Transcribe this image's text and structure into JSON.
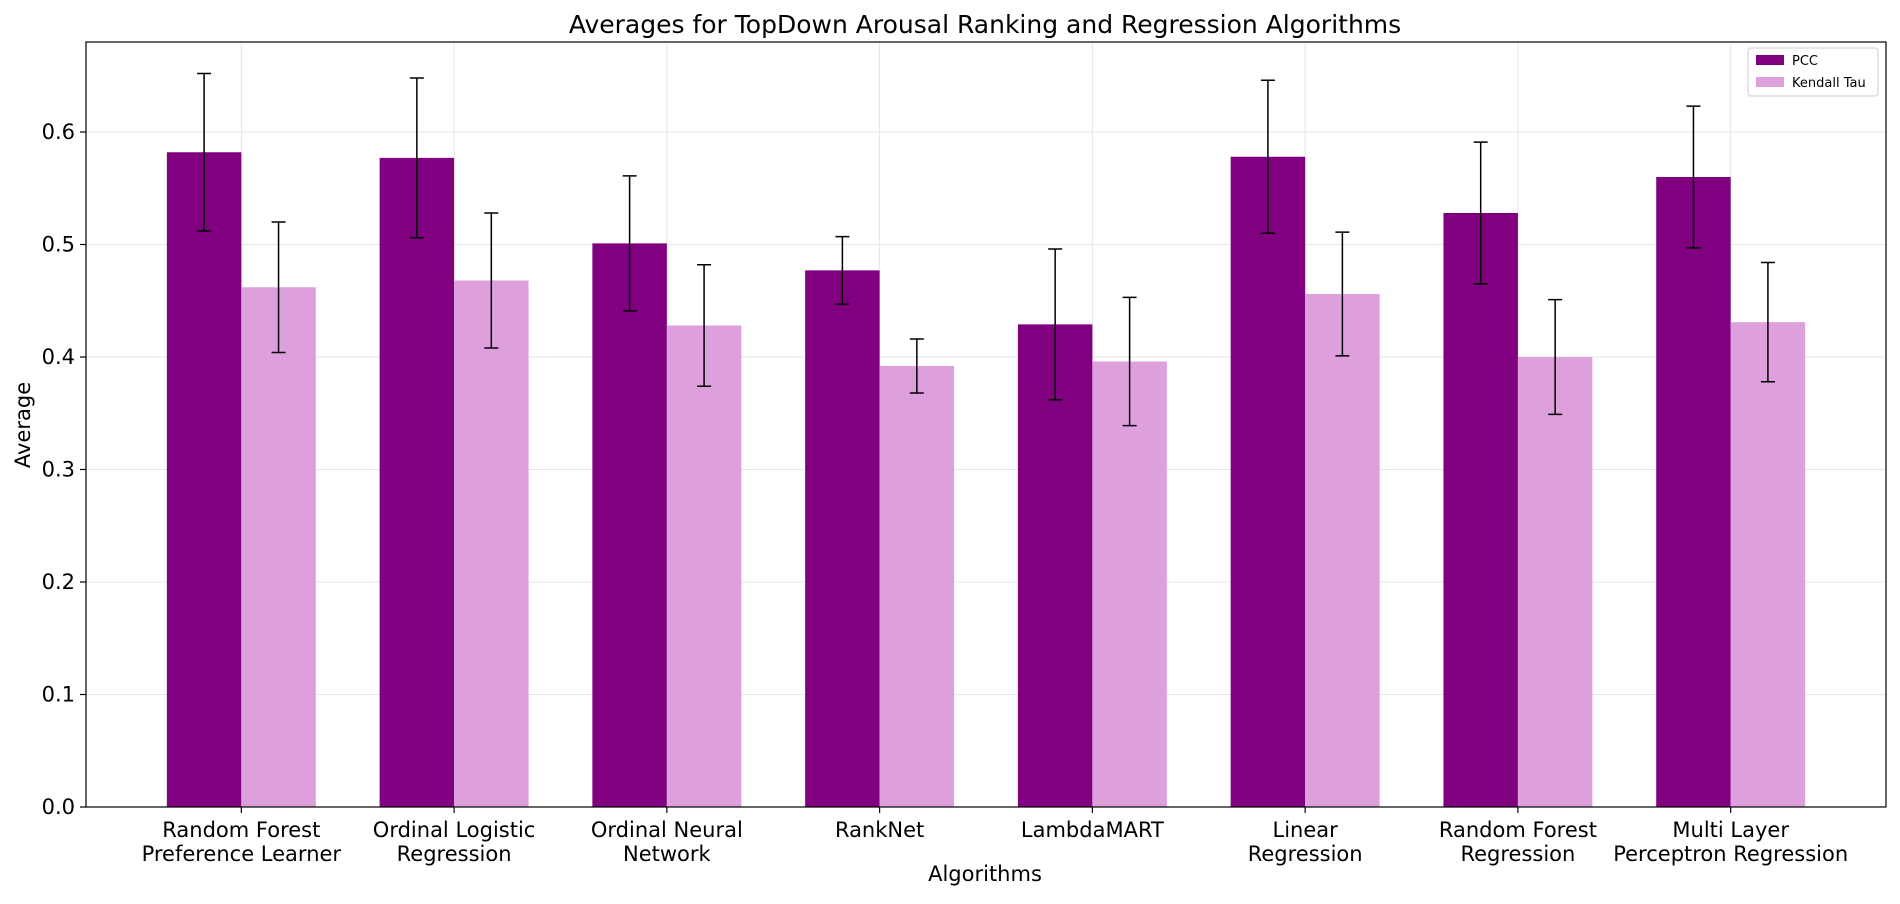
{
  "chart_data": {
    "type": "bar",
    "title": "Averages for TopDown Arousal Ranking and Regression Algorithms",
    "xlabel": "Algorithms",
    "ylabel": "Average",
    "ylim": [
      0,
      0.68
    ],
    "yticks": [
      "0.0",
      "0.1",
      "0.2",
      "0.3",
      "0.4",
      "0.5",
      "0.6"
    ],
    "grid": true,
    "legend_position": "top-right",
    "categories": [
      [
        "Random Forest",
        "Preference Learner"
      ],
      [
        "Ordinal Logistic",
        "Regression"
      ],
      [
        "Ordinal Neural",
        "Network"
      ],
      [
        "RankNet"
      ],
      [
        "LambdaMART"
      ],
      [
        "Linear",
        "Regression"
      ],
      [
        "Random Forest",
        "Regression"
      ],
      [
        "Multi Layer",
        "Perceptron Regression"
      ]
    ],
    "series": [
      {
        "name": "PCC",
        "color": "#800080",
        "values": [
          0.582,
          0.577,
          0.501,
          0.477,
          0.429,
          0.578,
          0.528,
          0.56
        ],
        "errors": [
          0.07,
          0.071,
          0.06,
          0.03,
          0.067,
          0.068,
          0.063,
          0.063
        ]
      },
      {
        "name": "Kendall Tau",
        "color": "#dda0dd",
        "values": [
          0.462,
          0.468,
          0.428,
          0.392,
          0.396,
          0.456,
          0.4,
          0.431
        ],
        "errors": [
          0.058,
          0.06,
          0.054,
          0.024,
          0.057,
          0.055,
          0.051,
          0.053
        ]
      }
    ]
  }
}
